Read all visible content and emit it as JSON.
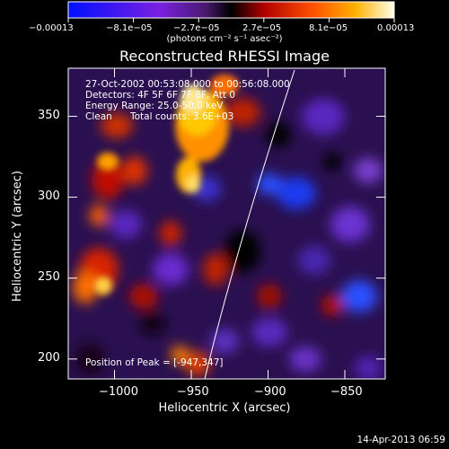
{
  "chart_data": {
    "type": "heatmap",
    "title": "Reconstructed RHESSI Image",
    "xlabel": "Heliocentric X (arcsec)",
    "ylabel": "Heliocentric Y (arcsec)",
    "xlim": [
      -1030,
      -835
    ],
    "ylim": [
      185,
      377
    ],
    "xticks": [
      "−1000",
      "−950",
      "−900",
      "−850"
    ],
    "xtick_values": [
      -1000,
      -950,
      -900,
      -850
    ],
    "yticks": [
      "350",
      "300",
      "250",
      "200"
    ],
    "ytick_values": [
      350,
      300,
      250,
      200
    ],
    "colorbar": {
      "labels": [
        "−0.00013",
        "−8.1e−05",
        "−2.7e−05",
        "2.7e−05",
        "8.1e−05",
        "0.00013"
      ],
      "unit_label": "(photons cm⁻² s⁻¹ asec⁻²)",
      "range": [
        -0.00013,
        0.00013
      ]
    },
    "annotations": {
      "time": "27-Oct-2002 00:53:08.000 to 00:56:08.000",
      "detectors": "Detectors: 4F 5F 6F 7F 8F, Att 0",
      "energy": "Energy Range: 25.0-50.0 keV",
      "method": "Clean",
      "counts": "Total counts: 3.6E+03",
      "peak": "Position of Peak = [-947,347]"
    },
    "limb_curve": true,
    "grid": false
  },
  "footer": {
    "timestamp": "14-Apr-2013 06:59"
  }
}
